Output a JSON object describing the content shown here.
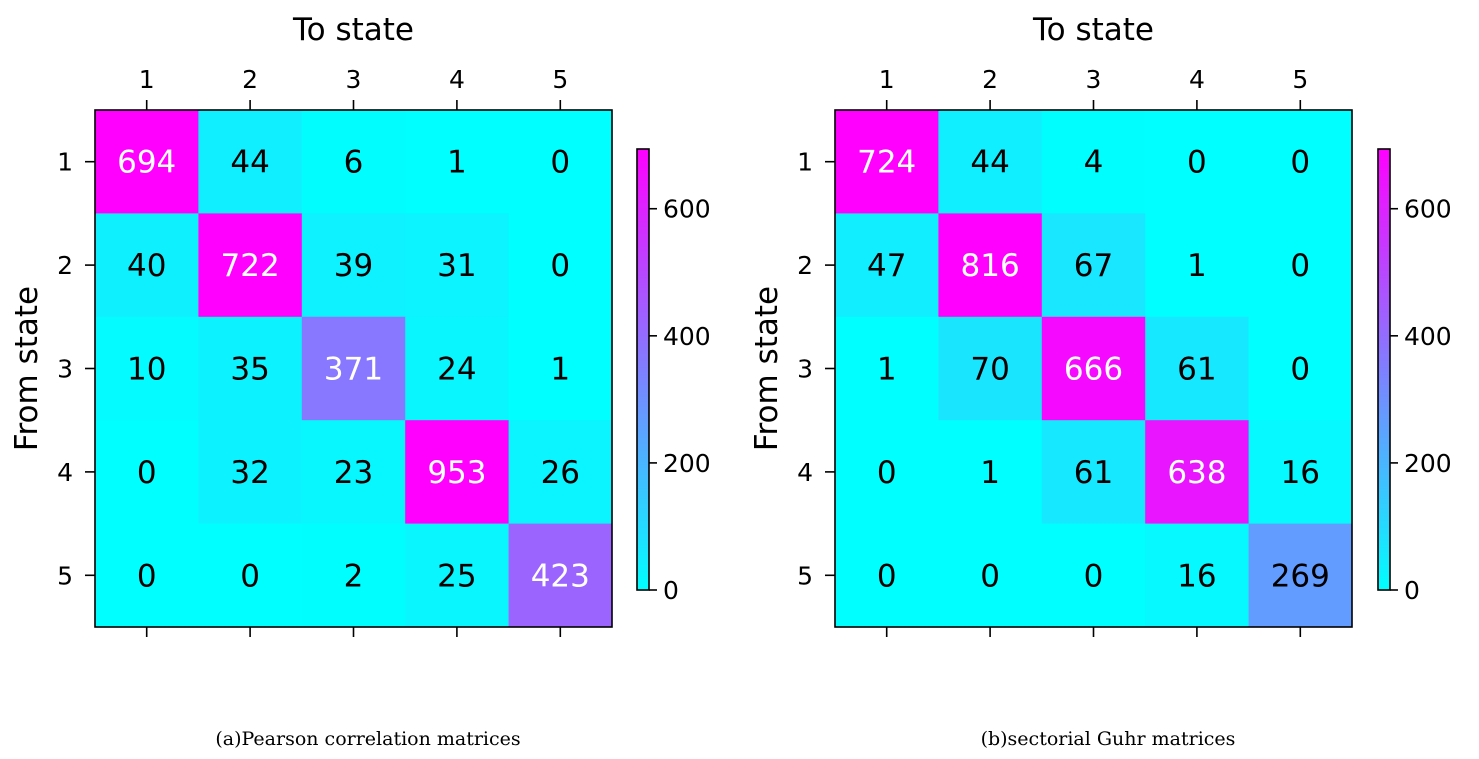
{
  "chart_data": [
    {
      "type": "heatmap",
      "title": "",
      "xlabel": "To state",
      "ylabel": "From state",
      "x_ticks": [
        "1",
        "2",
        "3",
        "4",
        "5"
      ],
      "y_ticks": [
        "1",
        "2",
        "3",
        "4",
        "5"
      ],
      "values": [
        [
          694,
          44,
          6,
          1,
          0
        ],
        [
          40,
          722,
          39,
          31,
          0
        ],
        [
          10,
          35,
          371,
          24,
          1
        ],
        [
          0,
          32,
          23,
          953,
          26
        ],
        [
          0,
          0,
          2,
          25,
          423
        ]
      ],
      "colormap": "cool",
      "color_min": "#00ffff",
      "color_max": "#ff00ff",
      "vmin": 0,
      "vmax": 694,
      "colorbar_ticks": [
        0,
        200,
        400,
        600
      ],
      "caption": "(a)Pearson correlation matrices"
    },
    {
      "type": "heatmap",
      "title": "",
      "xlabel": "To state",
      "ylabel": "From state",
      "x_ticks": [
        "1",
        "2",
        "3",
        "4",
        "5"
      ],
      "y_ticks": [
        "1",
        "2",
        "3",
        "4",
        "5"
      ],
      "values": [
        [
          724,
          44,
          4,
          0,
          0
        ],
        [
          47,
          816,
          67,
          1,
          0
        ],
        [
          1,
          70,
          666,
          61,
          0
        ],
        [
          0,
          1,
          61,
          638,
          16
        ],
        [
          0,
          0,
          0,
          16,
          269
        ]
      ],
      "colormap": "cool",
      "color_min": "#00ffff",
      "color_max": "#ff00ff",
      "vmin": 0,
      "vmax": 694,
      "colorbar_ticks": [
        0,
        200,
        400,
        600
      ],
      "caption": "(b)sectorial Guhr matrices"
    }
  ]
}
